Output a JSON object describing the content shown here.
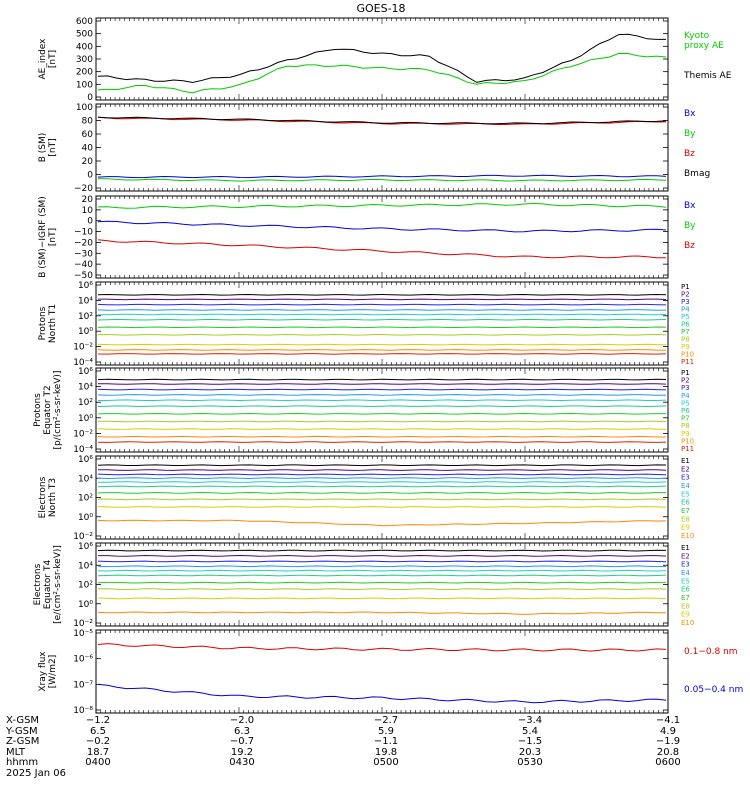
{
  "title": "GOES-18",
  "colors": {
    "black": "#000000",
    "green": "#00cc00",
    "blue": "#0000dd",
    "red": "#dd0000",
    "ticks": [
      "#000000",
      "#550088",
      "#2222ee",
      "#2299ee",
      "#22cccc",
      "#22cc88",
      "#22cc22",
      "#aacc22",
      "#ddcc00",
      "#ff8800",
      "#dd2200",
      "#aa0000"
    ]
  },
  "x_times": [
    "0400",
    "0430",
    "0500",
    "0530",
    "0600"
  ],
  "panels": [
    {
      "ylabel": [
        "AE_index",
        "[nT]"
      ],
      "yticks": [
        "600",
        "500",
        "400",
        "300",
        "200",
        "100",
        "0"
      ],
      "legend": [
        {
          "text": "Kyoto",
          "color": "#00cc00"
        },
        {
          "text": "proxy AE",
          "color": "#00cc00"
        },
        {
          "text": "Themis AE",
          "color": "#000000"
        }
      ]
    },
    {
      "ylabel": [
        "B (SM)",
        "[nT]"
      ],
      "yticks": [
        "100",
        "80",
        "60",
        "40",
        "20",
        "0",
        "−20"
      ],
      "legend": [
        {
          "text": "Bx",
          "color": "#0000dd"
        },
        {
          "text": "By",
          "color": "#00cc00"
        },
        {
          "text": "Bz",
          "color": "#dd0000"
        },
        {
          "text": "Bmag",
          "color": "#000000"
        }
      ]
    },
    {
      "ylabel": [
        "B (SM)−IGRF (SM)",
        "[nT]"
      ],
      "yticks": [
        "20",
        "10",
        "0",
        "−10",
        "−20",
        "−30",
        "−40",
        "−50"
      ],
      "legend": [
        {
          "text": "Bx",
          "color": "#0000dd"
        },
        {
          "text": "By",
          "color": "#00cc00"
        },
        {
          "text": "Bz",
          "color": "#dd0000"
        }
      ]
    },
    {
      "ylabel": [
        "Protons",
        "North T1"
      ],
      "yticks": [
        "10⁶",
        "10⁴",
        "10²",
        "10⁰",
        "10⁻²",
        "10⁻⁴"
      ],
      "legend": [
        "P1",
        "P2",
        "P3",
        "P4",
        "P5",
        "P6",
        "P7",
        "P8",
        "P9",
        "P10",
        "P11"
      ]
    },
    {
      "ylabel": [
        "Protons",
        "Equator T2",
        "[p/(cm²-s-sr-keV)]"
      ],
      "yticks": [
        "10⁶",
        "10⁴",
        "10²",
        "10⁰",
        "10⁻²",
        "10⁻⁴"
      ],
      "legend": [
        "P1",
        "P2",
        "P3",
        "P4",
        "P5",
        "P6",
        "P7",
        "P8",
        "P9",
        "P10",
        "P11"
      ]
    },
    {
      "ylabel": [
        "Electrons",
        "North T3"
      ],
      "yticks": [
        "10⁶",
        "10⁴",
        "10²",
        "10⁰",
        "10⁻²"
      ],
      "legend": [
        "E1",
        "E2",
        "E3",
        "E4",
        "E5",
        "E6",
        "E7",
        "E8",
        "E9",
        "E10"
      ]
    },
    {
      "ylabel": [
        "Electrons",
        "Equator T4",
        "[e/(cm²-s-sr-keV)]"
      ],
      "yticks": [
        "10⁶",
        "10⁴",
        "10²",
        "10⁰",
        "10⁻²"
      ],
      "legend": [
        "E1",
        "E2",
        "E3",
        "E4",
        "E5",
        "E6",
        "E7",
        "E8",
        "E9",
        "E10"
      ]
    },
    {
      "ylabel": [
        "Xray flux",
        "[W/m2]"
      ],
      "yticks": [
        "10⁻⁵",
        "10⁻⁶",
        "10⁻⁷",
        "10⁻⁸"
      ],
      "legend": [
        {
          "text": "0.1−0.8 nm",
          "color": "#dd0000"
        },
        {
          "text": "0.05−0.4 nm",
          "color": "#0000dd"
        }
      ]
    }
  ],
  "footer": {
    "rows": [
      {
        "label": "X-GSM",
        "values": [
          "−1.2",
          "−2.0",
          "−2.7",
          "−3.4",
          "−4.1"
        ]
      },
      {
        "label": "Y-GSM",
        "values": [
          "6.5",
          "6.3",
          "5.9",
          "5.4",
          "4.9"
        ]
      },
      {
        "label": "Z-GSM",
        "values": [
          "−0.2",
          "−0.7",
          "−1.1",
          "−1.5",
          "−1.9"
        ]
      },
      {
        "label": "MLT",
        "values": [
          "18.7",
          "19.2",
          "19.8",
          "20.3",
          "20.8"
        ]
      },
      {
        "label": "hhmm",
        "values": [
          "0400",
          "0430",
          "0500",
          "0530",
          "0600"
        ]
      }
    ],
    "date": "2025 Jan 06"
  },
  "chart_data": [
    {
      "type": "line",
      "title": "GOES-18",
      "x": [
        "0400",
        "0410",
        "0420",
        "0430",
        "0440",
        "0450",
        "0500",
        "0510",
        "0520",
        "0530",
        "0540",
        "0550",
        "0600"
      ],
      "ylim": [
        0,
        620
      ],
      "series": [
        {
          "name": "Themis AE",
          "values": [
            180,
            150,
            140,
            190,
            300,
            390,
            350,
            330,
            140,
            160,
            300,
            500,
            450
          ]
        },
        {
          "name": "Kyoto proxy AE",
          "values": [
            70,
            110,
            60,
            110,
            260,
            260,
            240,
            230,
            120,
            140,
            260,
            350,
            320
          ]
        }
      ]
    },
    {
      "type": "line",
      "x": [
        "0400",
        "0430",
        "0500",
        "0530",
        "0600"
      ],
      "ylim": [
        -25,
        100
      ],
      "series": [
        {
          "name": "Bx",
          "values": [
            -5,
            -5,
            -4,
            -3,
            -4
          ]
        },
        {
          "name": "By",
          "values": [
            -8,
            -10,
            -9,
            -10,
            -9
          ]
        },
        {
          "name": "Bz",
          "values": [
            80,
            77,
            72,
            71,
            75
          ]
        },
        {
          "name": "Bmag",
          "values": [
            81,
            78,
            73,
            72,
            76
          ]
        }
      ]
    },
    {
      "type": "line",
      "x": [
        "0400",
        "0430",
        "0500",
        "0530",
        "0600"
      ],
      "ylim": [
        -50,
        20
      ],
      "series": [
        {
          "name": "Bx",
          "values": [
            -2,
            -5,
            -8,
            -10,
            -9
          ]
        },
        {
          "name": "By",
          "values": [
            10,
            11,
            12,
            13,
            11
          ]
        },
        {
          "name": "Bz",
          "values": [
            -18,
            -22,
            -27,
            -32,
            -32
          ]
        }
      ]
    },
    {
      "type": "line",
      "x": [
        "0400",
        "0430",
        "0500",
        "0530",
        "0600"
      ],
      "ylim": [
        "1e-5",
        "1e6"
      ],
      "series": [
        {
          "name": "P1",
          "values": [
            20000,
            20000,
            20000,
            20000,
            20000
          ]
        },
        {
          "name": "P2",
          "values": [
            5000,
            5000,
            5000,
            5000,
            5000
          ]
        },
        {
          "name": "P3",
          "values": [
            1000,
            1000,
            1000,
            1000,
            1000
          ]
        },
        {
          "name": "P4",
          "values": [
            200,
            200,
            200,
            200,
            200
          ]
        },
        {
          "name": "P5",
          "values": [
            50,
            50,
            50,
            50,
            50
          ]
        },
        {
          "name": "P6",
          "values": [
            10,
            10,
            10,
            10,
            10
          ]
        },
        {
          "name": "P7",
          "values": [
            1,
            1,
            1,
            1,
            1
          ]
        },
        {
          "name": "P8",
          "values": [
            0.1,
            0.1,
            0.1,
            0.1,
            0.1
          ]
        },
        {
          "name": "P9",
          "values": [
            0.005,
            0.005,
            0.005,
            0.005,
            0.005
          ]
        },
        {
          "name": "P10",
          "values": [
            0.001,
            0.001,
            0.001,
            0.001,
            0.001
          ]
        },
        {
          "name": "P11",
          "values": [
            0.0003,
            0.0003,
            0.0003,
            0.0003,
            0.0003
          ]
        }
      ]
    },
    {
      "type": "line",
      "x": [
        "0400",
        "0430",
        "0500",
        "0530",
        "0600"
      ],
      "ylim": [
        "1e-5",
        "1e6"
      ],
      "series": [
        {
          "name": "P1",
          "values": [
            30000,
            30000,
            30000,
            30000,
            30000
          ]
        },
        {
          "name": "P2",
          "values": [
            8000,
            8000,
            8000,
            8000,
            8000
          ]
        },
        {
          "name": "P3",
          "values": [
            1500,
            1500,
            1500,
            1500,
            1500
          ]
        },
        {
          "name": "P4",
          "values": [
            300,
            300,
            300,
            300,
            300
          ]
        },
        {
          "name": "P5",
          "values": [
            60,
            60,
            60,
            60,
            60
          ]
        },
        {
          "name": "P6",
          "values": [
            10,
            10,
            10,
            10,
            10
          ]
        },
        {
          "name": "P7",
          "values": [
            1,
            1,
            1,
            1,
            1
          ]
        },
        {
          "name": "P8",
          "values": [
            0.1,
            0.1,
            0.1,
            0.1,
            0.1
          ]
        },
        {
          "name": "P9",
          "values": [
            0.01,
            0.01,
            0.01,
            0.01,
            0.01
          ]
        },
        {
          "name": "P10",
          "values": [
            0.001,
            0.001,
            0.001,
            0.001,
            0.001
          ]
        },
        {
          "name": "P11",
          "values": [
            0.0002,
            0.0002,
            0.0002,
            0.0002,
            0.0002
          ]
        }
      ]
    },
    {
      "type": "line",
      "x": [
        "0400",
        "0430",
        "0500",
        "0530",
        "0600"
      ],
      "ylim": [
        "1e-3",
        "1e6"
      ],
      "series": [
        {
          "name": "E1",
          "values": [
            100000,
            100000,
            100000,
            100000,
            100000
          ]
        },
        {
          "name": "E2",
          "values": [
            30000,
            30000,
            30000,
            30000,
            30000
          ]
        },
        {
          "name": "E3",
          "values": [
            10000,
            10000,
            10000,
            10000,
            10000
          ]
        },
        {
          "name": "E4",
          "values": [
            4000,
            4000,
            4000,
            4000,
            4000
          ]
        },
        {
          "name": "E5",
          "values": [
            1500,
            1500,
            1500,
            1500,
            1500
          ]
        },
        {
          "name": "E6",
          "values": [
            500,
            500,
            500,
            500,
            500
          ]
        },
        {
          "name": "E7",
          "values": [
            100,
            100,
            100,
            100,
            100
          ]
        },
        {
          "name": "E8",
          "values": [
            20,
            20,
            20,
            20,
            20
          ]
        },
        {
          "name": "E9",
          "values": [
            3,
            3,
            3,
            3,
            3
          ]
        },
        {
          "name": "E10",
          "values": [
            0.1,
            0.1,
            0.03,
            0.05,
            0.1
          ]
        }
      ]
    },
    {
      "type": "line",
      "x": [
        "0400",
        "0430",
        "0500",
        "0530",
        "0600"
      ],
      "ylim": [
        "1e-3",
        "1e6"
      ],
      "series": [
        {
          "name": "E1",
          "values": [
            150000,
            150000,
            150000,
            150000,
            150000
          ]
        },
        {
          "name": "E2",
          "values": [
            40000,
            40000,
            40000,
            40000,
            40000
          ]
        },
        {
          "name": "E3",
          "values": [
            10000,
            10000,
            10000,
            10000,
            10000
          ]
        },
        {
          "name": "E4",
          "values": [
            3000,
            3000,
            3000,
            3000,
            3000
          ]
        },
        {
          "name": "E5",
          "values": [
            1000,
            1000,
            1000,
            1000,
            1000
          ]
        },
        {
          "name": "E6",
          "values": [
            300,
            300,
            300,
            300,
            300
          ]
        },
        {
          "name": "E7",
          "values": [
            50,
            50,
            50,
            50,
            50
          ]
        },
        {
          "name": "E8",
          "values": [
            10,
            10,
            10,
            10,
            10
          ]
        },
        {
          "name": "E9",
          "values": [
            1,
            1,
            1,
            1,
            1
          ]
        },
        {
          "name": "E10",
          "values": [
            0.03,
            0.03,
            0.03,
            0.02,
            0.03
          ]
        }
      ]
    },
    {
      "type": "line",
      "x": [
        "0400",
        "0430",
        "0500",
        "0530",
        "0600"
      ],
      "ylim": [
        "1e-8",
        "1e-5"
      ],
      "series": [
        {
          "name": "0.1−0.8 nm",
          "values": [
            "3e-6",
            "2.2e-6",
            "2e-6",
            "1.9e-6",
            "1.9e-6"
          ]
        },
        {
          "name": "0.05−0.4 nm",
          "values": [
            "1e-7",
            "4e-8",
            "3.5e-8",
            "2.5e-8",
            "3e-8"
          ]
        }
      ]
    }
  ]
}
